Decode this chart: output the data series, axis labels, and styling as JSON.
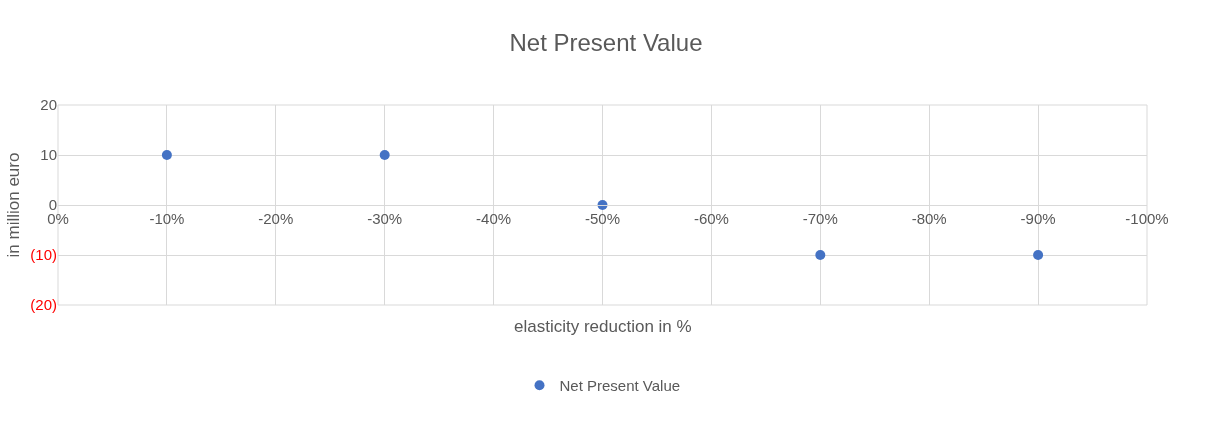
{
  "chart_data": {
    "type": "scatter",
    "title": "Net Present Value",
    "xlabel": "elasticity reduction in %",
    "ylabel": "in million euro",
    "x": [
      -10,
      -30,
      -50,
      -70,
      -90
    ],
    "series": [
      {
        "name": "Net Present Value",
        "color": "#4472c4",
        "values": [
          10,
          10,
          0,
          -10,
          -10
        ]
      }
    ],
    "xlim": [
      0,
      -100
    ],
    "xticks": [
      {
        "value": 0,
        "label": "0%"
      },
      {
        "value": -10,
        "label": "-10%"
      },
      {
        "value": -20,
        "label": "-20%"
      },
      {
        "value": -30,
        "label": "-30%"
      },
      {
        "value": -40,
        "label": "-40%"
      },
      {
        "value": -50,
        "label": "-50%"
      },
      {
        "value": -60,
        "label": "-60%"
      },
      {
        "value": -70,
        "label": "-70%"
      },
      {
        "value": -80,
        "label": "-80%"
      },
      {
        "value": -90,
        "label": "-90%"
      },
      {
        "value": -100,
        "label": "-100%"
      }
    ],
    "ylim": [
      -20,
      20
    ],
    "yticks": [
      20,
      10,
      0,
      {
        "value": -10,
        "label": "(10)"
      },
      {
        "value": -20,
        "label": "(20)"
      }
    ],
    "grid": true,
    "legend": "bottom",
    "marker": "circle"
  }
}
